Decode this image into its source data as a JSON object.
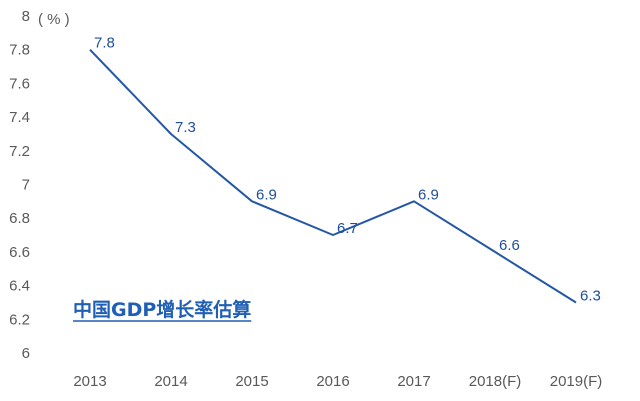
{
  "chart_data": {
    "type": "line",
    "title": "中国GDP增长率估算",
    "unit_label": "( % )",
    "categories": [
      "2013",
      "2014",
      "2015",
      "2016",
      "2017",
      "2018(F)",
      "2019(F)"
    ],
    "series": [
      {
        "values": [
          7.8,
          7.3,
          6.9,
          6.7,
          6.9,
          6.6,
          6.3
        ],
        "color": "#2457a6"
      }
    ],
    "data_labels": [
      "7.8",
      "7.3",
      "6.9",
      "6.7",
      "6.9",
      "6.6",
      "6.3"
    ],
    "y_ticks": [
      "6",
      "6.2",
      "6.4",
      "6.6",
      "6.8",
      "7",
      "7.2",
      "7.4",
      "7.6",
      "7.8",
      "8"
    ],
    "ylim": [
      6,
      8
    ],
    "grid": false,
    "legend": "none"
  }
}
